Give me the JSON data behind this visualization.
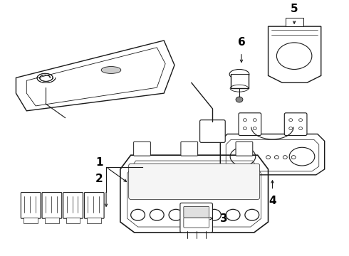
{
  "background_color": "#ffffff",
  "line_color": "#1a1a1a",
  "label_color": "#000000",
  "figsize": [
    4.9,
    3.6
  ],
  "dpi": 100
}
